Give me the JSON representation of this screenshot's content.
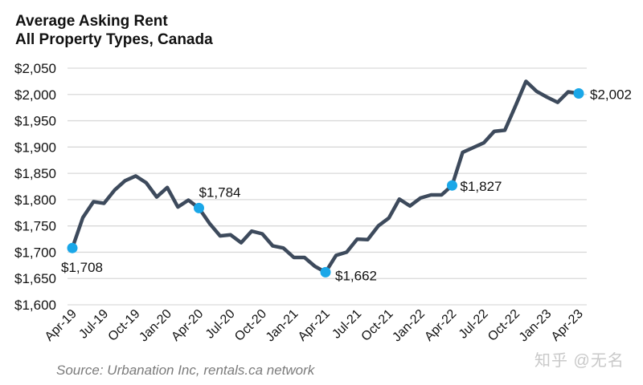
{
  "chart_data": {
    "type": "line",
    "title": "Average Asking Rent",
    "subtitle": "All Property Types, Canada",
    "xlabel": "",
    "ylabel": "",
    "ylim": [
      1600,
      2050
    ],
    "yticks": [
      1600,
      1650,
      1700,
      1750,
      1800,
      1850,
      1900,
      1950,
      2000,
      2050
    ],
    "ytick_labels": [
      "$1,600",
      "$1,650",
      "$1,700",
      "$1,750",
      "$1,800",
      "$1,850",
      "$1,900",
      "$1,950",
      "$2,000",
      "$2,050"
    ],
    "xtick_labels": [
      "Apr-19",
      "Jul-19",
      "Oct-19",
      "Jan-20",
      "Apr-20",
      "Jul-20",
      "Oct-20",
      "Jan-21",
      "Apr-21",
      "Jul-21",
      "Oct-21",
      "Jan-22",
      "Apr-22",
      "Jul-22",
      "Oct-22",
      "Jan-23",
      "Apr-23"
    ],
    "grid": true,
    "series": [
      {
        "name": "Average Asking Rent",
        "color": "#3d4a5c",
        "values": [
          1708,
          1766,
          1796,
          1793,
          1818,
          1836,
          1845,
          1832,
          1805,
          1823,
          1786,
          1799,
          1784,
          1755,
          1731,
          1733,
          1718,
          1740,
          1735,
          1712,
          1708,
          1690,
          1690,
          1673,
          1662,
          1694,
          1700,
          1725,
          1724,
          1750,
          1765,
          1801,
          1788,
          1803,
          1809,
          1809,
          1827,
          1890,
          1899,
          1908,
          1930,
          1932,
          1978,
          2025,
          2006,
          1995,
          1985,
          2005,
          2002
        ]
      }
    ],
    "highlights": [
      {
        "index": 0,
        "label": "$1,708",
        "value": 1708
      },
      {
        "index": 12,
        "label": "$1,784",
        "value": 1784
      },
      {
        "index": 24,
        "label": "$1,662",
        "value": 1662
      },
      {
        "index": 36,
        "label": "$1,827",
        "value": 1827
      },
      {
        "index": 48,
        "label": "$2,002",
        "value": 2002
      }
    ],
    "highlight_color": "#1aa7e8",
    "grid_color": "#d9d9d9"
  },
  "source": "Source: Urbanation Inc, rentals.ca network",
  "watermark": "知乎 @无名"
}
